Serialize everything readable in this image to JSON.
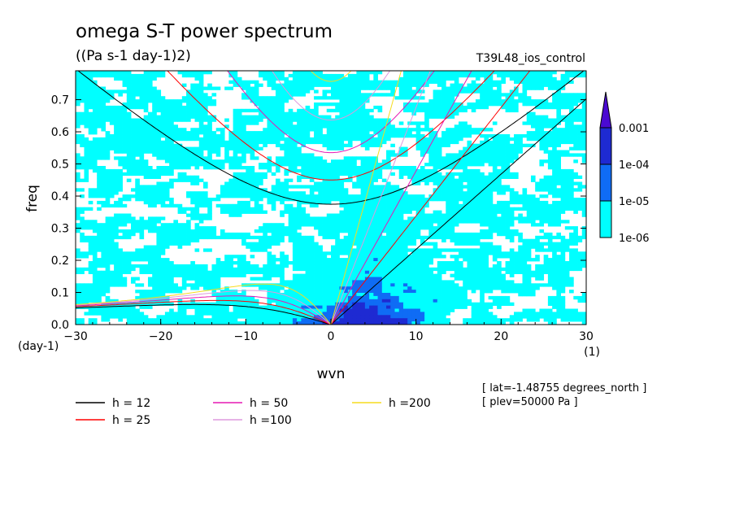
{
  "chart_data": {
    "type": "heatmap",
    "title": "omega S-T power spectrum",
    "subtitle": "((Pa s-1 day-1)2)",
    "experiment": "T39L48_ios_control",
    "xlabel": "wvn",
    "ylabel": "freq",
    "x_unit": "(1)",
    "y_unit": "(day-1)",
    "xlim": [
      -30,
      30
    ],
    "ylim": [
      0,
      0.79
    ],
    "x_ticks": [
      "-30",
      "-20",
      "-10",
      "0",
      "10",
      "20",
      "30"
    ],
    "y_ticks": [
      "0.0",
      "0.1",
      "0.2",
      "0.3",
      "0.4",
      "0.5",
      "0.6",
      "0.7"
    ],
    "colorbar": {
      "levels": [
        "1e-06",
        "1e-05",
        "1e-04",
        "0.001"
      ],
      "colors": [
        "#00ffff",
        "#0f6cf5",
        "#1e2ad2",
        "#4b0ad2"
      ],
      "extend": "max"
    },
    "dispersion_curves": [
      {
        "label": "h = 12",
        "h": 12,
        "color": "#000000"
      },
      {
        "label": "h = 25",
        "h": 25,
        "color": "#ff0000"
      },
      {
        "label": "h = 50",
        "h": 50,
        "color": "#e619b4"
      },
      {
        "label": "h =100",
        "h": 100,
        "color": "#dd99dd"
      },
      {
        "label": "h =200",
        "h": 200,
        "color": "#f5dc1e"
      }
    ],
    "annotations": [
      "[ lat=-1.48755 degrees_north ]",
      "[ plev=50000 Pa ]"
    ],
    "grid": false,
    "legend_position": "bottom"
  }
}
